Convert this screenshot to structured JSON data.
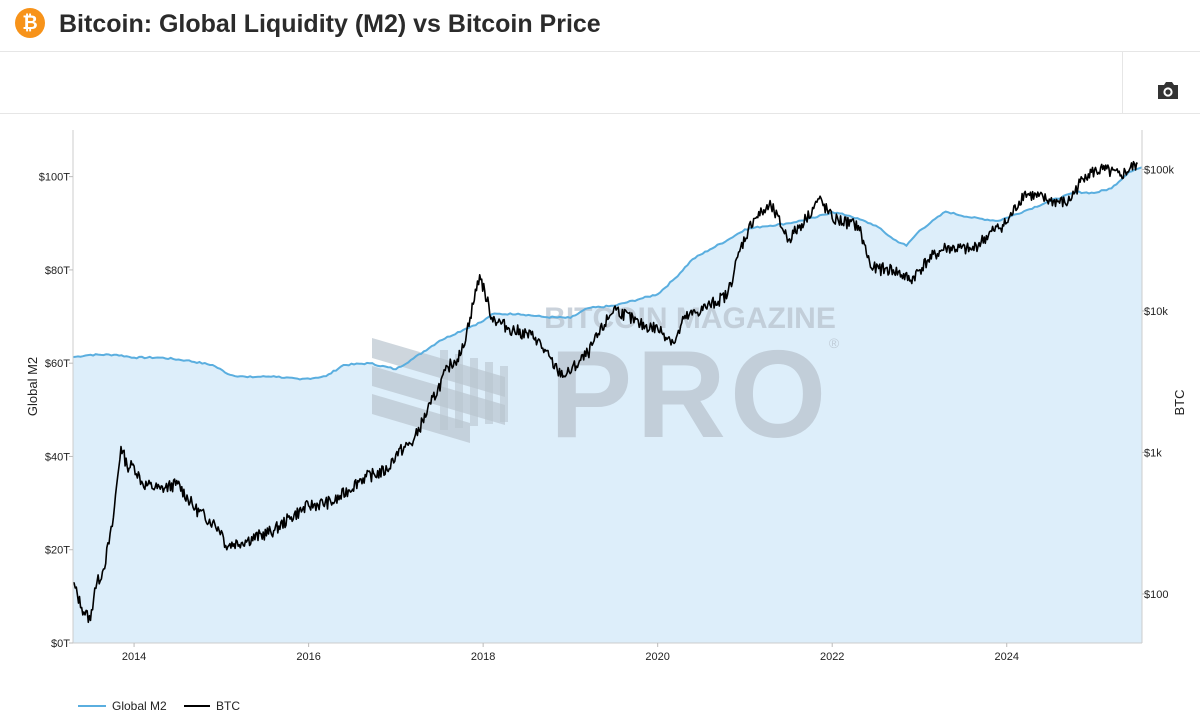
{
  "header": {
    "logo_glyph": "₿",
    "logo_icon": "bitcoin-logo-icon",
    "title": "Bitcoin: Global Liquidity (M2) vs Bitcoin Price"
  },
  "toolbar": {
    "camera_icon": "camera-icon"
  },
  "watermark": {
    "line1": "BITCOIN MAGAZINE",
    "line2": "PRO",
    "mark": "®"
  },
  "colors": {
    "m2_line": "#5aaedf",
    "m2_fill": "#ddeefa",
    "btc_line": "#000000",
    "logo": "#f7931a",
    "watermark": "#b9c4cf"
  },
  "chart_data": {
    "type": "line",
    "title": "Bitcoin: Global Liquidity (M2) vs Bitcoin Price",
    "x_range": [
      2013.3,
      2025.55
    ],
    "x_ticks": [
      2014,
      2016,
      2018,
      2020,
      2022,
      2024
    ],
    "x_tick_labels": [
      "2014",
      "2016",
      "2018",
      "2020",
      "2022",
      "2024"
    ],
    "y_left": {
      "label": "Global M2",
      "range": [
        0,
        110
      ],
      "ticks": [
        0,
        20,
        40,
        60,
        80,
        100
      ],
      "tick_labels": [
        "$0T",
        "$20T",
        "$40T",
        "$60T",
        "$80T",
        "$100T"
      ]
    },
    "y_right": {
      "label": "BTC",
      "scale": "log",
      "range": [
        45,
        190000
      ],
      "ticks": [
        100,
        1000,
        10000,
        100000
      ],
      "tick_labels": [
        "$100",
        "$1k",
        "$10k",
        "$100k"
      ]
    },
    "legend": {
      "position": "bottom-left",
      "entries": [
        "Global M2",
        "BTC"
      ]
    },
    "series": [
      {
        "name": "Global M2",
        "axis": "left",
        "style": "area",
        "x": [
          2013.3,
          2013.5,
          2013.8,
          2014.0,
          2014.3,
          2014.6,
          2014.9,
          2015.1,
          2015.3,
          2015.6,
          2015.9,
          2016.2,
          2016.4,
          2016.7,
          2017.0,
          2017.2,
          2017.5,
          2017.8,
          2018.0,
          2018.1,
          2018.4,
          2018.7,
          2019.0,
          2019.2,
          2019.5,
          2019.8,
          2020.0,
          2020.2,
          2020.4,
          2020.6,
          2020.8,
          2021.0,
          2021.2,
          2021.5,
          2021.8,
          2022.0,
          2022.2,
          2022.5,
          2022.7,
          2022.85,
          2023.0,
          2023.3,
          2023.6,
          2023.9,
          2024.2,
          2024.5,
          2024.8,
          2025.0,
          2025.2,
          2025.4,
          2025.55
        ],
        "y": [
          61.3,
          61.8,
          61.8,
          61.2,
          61.2,
          60.6,
          59.6,
          57.5,
          57.0,
          57.2,
          56.5,
          57.2,
          59.6,
          60.0,
          58.7,
          61.0,
          64.8,
          67.4,
          69.0,
          70.5,
          70.6,
          69.9,
          69.7,
          71.8,
          72.3,
          73.8,
          74.8,
          78.2,
          82.3,
          84.4,
          86.4,
          88.7,
          89.3,
          90.0,
          91.2,
          92.4,
          91.6,
          89.5,
          86.6,
          85.2,
          88.4,
          92.5,
          91.2,
          90.5,
          92.6,
          94.8,
          96.7,
          96.5,
          97.5,
          101.0,
          102.0
        ]
      },
      {
        "name": "BTC",
        "axis": "right",
        "style": "line",
        "x": [
          2013.3,
          2013.4,
          2013.5,
          2013.55,
          2013.65,
          2013.75,
          2013.85,
          2013.92,
          2014.0,
          2014.1,
          2014.3,
          2014.5,
          2014.7,
          2014.9,
          2015.0,
          2015.05,
          2015.3,
          2015.6,
          2015.8,
          2016.0,
          2016.3,
          2016.6,
          2016.9,
          2017.0,
          2017.2,
          2017.4,
          2017.6,
          2017.75,
          2017.85,
          2017.96,
          2018.1,
          2018.3,
          2018.6,
          2018.85,
          2018.95,
          2019.2,
          2019.5,
          2019.8,
          2020.0,
          2020.2,
          2020.3,
          2020.6,
          2020.8,
          2020.95,
          2021.1,
          2021.3,
          2021.5,
          2021.7,
          2021.85,
          2022.0,
          2022.3,
          2022.45,
          2022.7,
          2022.9,
          2023.1,
          2023.3,
          2023.6,
          2023.85,
          2024.0,
          2024.2,
          2024.5,
          2024.7,
          2024.9,
          2025.1,
          2025.3,
          2025.5
        ],
        "y": [
          120,
          80,
          65,
          110,
          150,
          300,
          1100,
          800,
          800,
          600,
          550,
          600,
          400,
          320,
          280,
          220,
          240,
          280,
          350,
          420,
          450,
          650,
          750,
          970,
          1200,
          2200,
          4000,
          5000,
          9000,
          18000,
          9000,
          7500,
          6500,
          3800,
          3500,
          5000,
          10500,
          8000,
          7500,
          6000,
          8800,
          11000,
          13000,
          28000,
          45000,
          55000,
          32000,
          45000,
          62000,
          45000,
          40000,
          20000,
          19500,
          16500,
          23000,
          28000,
          27000,
          37000,
          42000,
          68000,
          60000,
          58000,
          92000,
          100000,
          90000,
          110000
        ]
      }
    ]
  }
}
